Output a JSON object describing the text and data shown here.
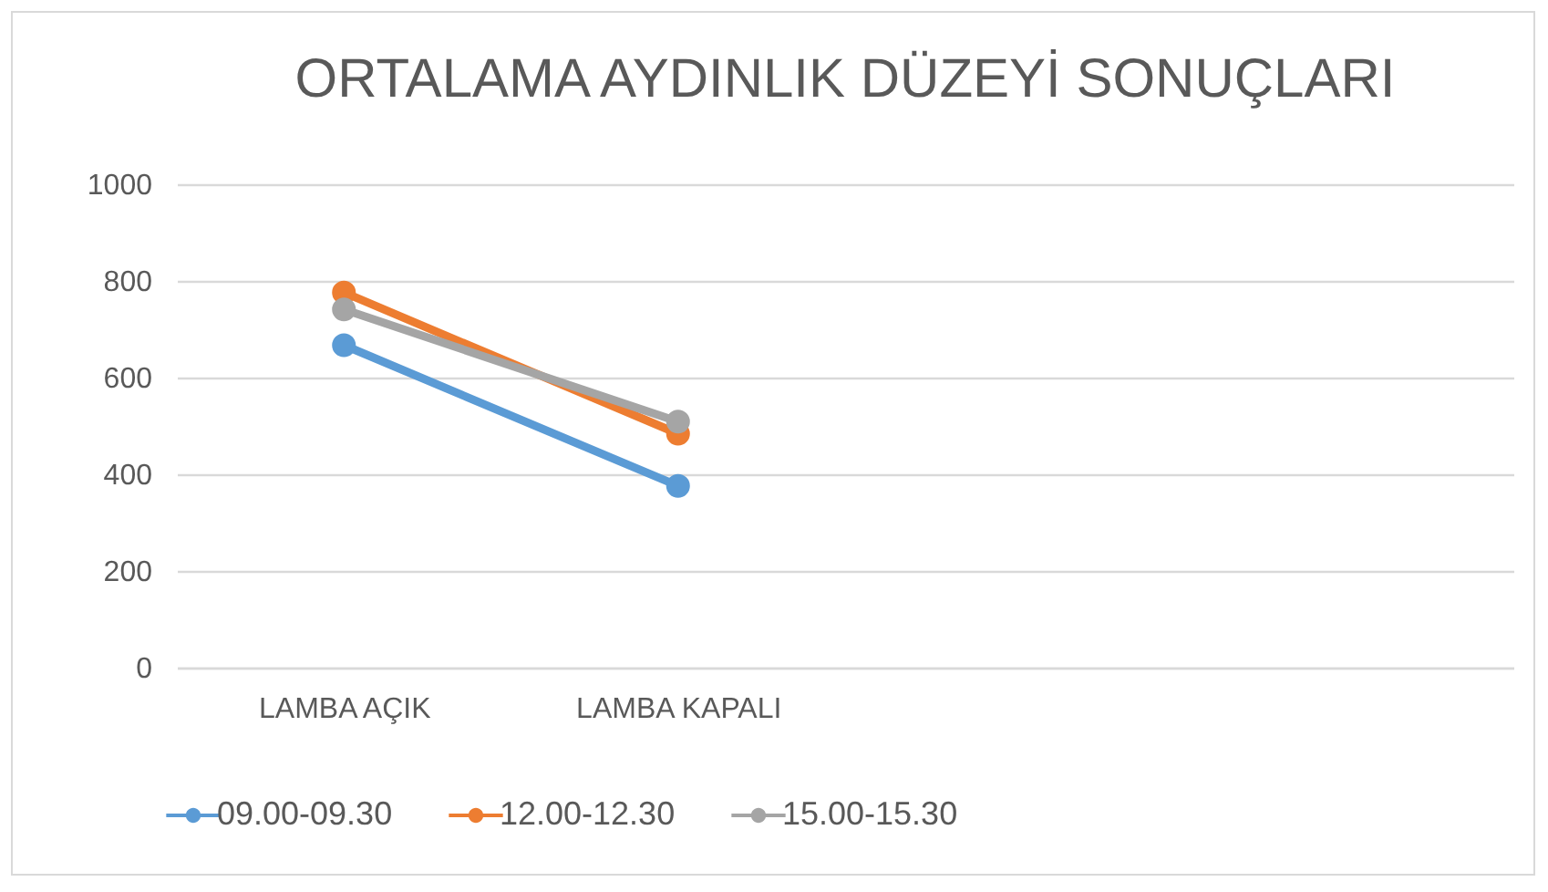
{
  "chart_data": {
    "type": "line",
    "title": "ORTALAMA AYDINLIK DÜZEYİ SONUÇLARI",
    "categories": [
      "LAMBA AÇIK",
      "LAMBA KAPALI",
      null,
      null
    ],
    "series": [
      {
        "name": "09.00-09.30",
        "color": "#5b9bd5",
        "values": [
          667,
          376,
          null,
          null
        ]
      },
      {
        "name": "12.00-12.30",
        "color": "#ed7d31",
        "values": [
          776,
          484,
          null,
          null
        ]
      },
      {
        "name": "15.00-15.30",
        "color": "#a5a5a5",
        "values": [
          741,
          509,
          null,
          null
        ]
      }
    ],
    "ylim": [
      0,
      1000
    ],
    "yticks": [
      0,
      200,
      400,
      600,
      800,
      1000
    ],
    "grid": "y",
    "legend": "bottom",
    "marker": "circle",
    "line_style": "solid"
  }
}
